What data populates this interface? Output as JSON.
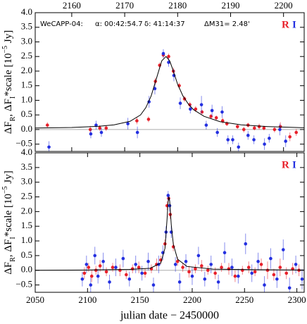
{
  "chart_data": [
    {
      "type": "scatter",
      "annotations": [
        "WeCAPP-04:",
        "α: 00:42:54.7",
        "δ: 41:14:37",
        "ΔM31= 2.48'"
      ],
      "ylabel": [
        "ΔF",
        "R",
        ", ΔF",
        "I",
        "*scale [10",
        "−5",
        " Jy]"
      ],
      "xlim": [
        2153.1,
        2203.9
      ],
      "ylim": [
        -0.75,
        4.0
      ],
      "xticks": [
        2160,
        2170,
        2180,
        2190,
        2200
      ],
      "xtick_side": "top",
      "yticks": [
        {
          "value": 4.0,
          "label": "4.0"
        },
        {
          "value": 3.5,
          "label": "3.5"
        },
        {
          "value": 3.0,
          "label": "3.0"
        },
        {
          "value": 2.5,
          "label": "2.5"
        },
        {
          "value": 2.0,
          "label": "2.0"
        },
        {
          "value": 1.5,
          "label": "1.5"
        },
        {
          "value": 1.0,
          "label": "1.0"
        },
        {
          "value": 0.5,
          "label": "0.5"
        },
        {
          "value": 0.0,
          "label": "0.0"
        },
        {
          "value": -0.5,
          "label": "−0.5"
        }
      ],
      "reference_line": 0,
      "series": [
        {
          "name": "R",
          "color": "#e8202a",
          "x": [
            2155.4,
            2163.5,
            2165.3,
            2166.5,
            2172.3,
            2174.5,
            2175.8,
            2176.6,
            2177.3,
            2178.3,
            2179.2,
            2180.3,
            2181.3,
            2182.3,
            2183.4,
            2184.6,
            2186.3,
            2187.3,
            2188.5,
            2189.3,
            2191.3,
            2192.5,
            2193.3,
            2194.5,
            2195.4,
            2196.3,
            2198.3,
            2199.4,
            2201.2,
            2202.4
          ],
          "values": [
            0.15,
            0.0,
            0.05,
            0.05,
            0.3,
            0.35,
            1.65,
            2.2,
            2.55,
            2.5,
            2.0,
            1.5,
            1.05,
            0.85,
            0.7,
            0.6,
            0.45,
            0.4,
            0.3,
            0.2,
            0.1,
            0.0,
            0.15,
            0.05,
            0.1,
            0.05,
            0.0,
            0.1,
            -0.25,
            -0.1
          ],
          "errors": [
            0.1,
            0.12,
            0.1,
            0.1,
            0.12,
            0.1,
            0.12,
            0.1,
            0.1,
            0.1,
            0.12,
            0.1,
            0.1,
            0.1,
            0.1,
            0.08,
            0.08,
            0.08,
            0.1,
            0.08,
            0.08,
            0.1,
            0.08,
            0.08,
            0.1,
            0.08,
            0.1,
            0.15,
            0.15,
            0.12
          ]
        },
        {
          "name": "I",
          "color": "#2430e0",
          "x": [
            2155.7,
            2163.6,
            2164.6,
            2165.6,
            2170.6,
            2172.4,
            2174.6,
            2175.7,
            2177.3,
            2178.3,
            2179.3,
            2180.5,
            2182.4,
            2184.5,
            2185.4,
            2186.5,
            2187.5,
            2188.4,
            2189.5,
            2190.4,
            2191.5,
            2193.3,
            2194.4,
            2196.4,
            2197.3,
            2199.3,
            2200.4
          ],
          "values": [
            -0.6,
            -0.15,
            0.15,
            -0.1,
            0.2,
            -0.1,
            0.95,
            1.4,
            2.6,
            2.3,
            1.85,
            0.9,
            0.7,
            0.85,
            0.15,
            0.65,
            -0.1,
            0.6,
            -0.35,
            -0.35,
            -0.6,
            -0.2,
            -0.35,
            -0.5,
            -0.3,
            0.0,
            -0.4
          ],
          "errors": [
            0.2,
            0.15,
            0.15,
            0.15,
            0.2,
            0.2,
            0.2,
            0.2,
            0.15,
            0.15,
            0.2,
            0.2,
            0.15,
            0.3,
            0.15,
            0.2,
            0.15,
            0.2,
            0.15,
            0.15,
            0.15,
            0.15,
            0.15,
            0.2,
            0.15,
            0.2,
            0.2
          ]
        },
        {
          "color": "#000000",
          "style": "line",
          "x": [
            2153,
            2160,
            2165,
            2168,
            2171,
            2173,
            2174,
            2175,
            2176,
            2177,
            2177.8,
            2178.5,
            2179,
            2180,
            2181,
            2182,
            2183,
            2185,
            2188,
            2192,
            2197,
            2204
          ],
          "values": [
            0.05,
            0.07,
            0.11,
            0.16,
            0.28,
            0.5,
            0.75,
            1.15,
            1.75,
            2.35,
            2.5,
            2.35,
            2.1,
            1.55,
            1.15,
            0.88,
            0.68,
            0.45,
            0.27,
            0.16,
            0.1,
            0.06
          ]
        }
      ]
    },
    {
      "type": "scatter",
      "ylabel": [
        "ΔF",
        "R",
        ", ΔF",
        "I",
        "*scale [10",
        "−5",
        " Jy]"
      ],
      "xlabel": "julian date − 2450000",
      "xlim": [
        2050,
        2307
      ],
      "ylim": [
        -0.75,
        4.0
      ],
      "xticks": [
        2050,
        2100,
        2150,
        2200,
        2250,
        2300
      ],
      "xtick_side": "bottom",
      "yticks": [
        {
          "value": 4.0,
          "label": "4.0"
        },
        {
          "value": 3.5,
          "label": "3.5"
        },
        {
          "value": 3.0,
          "label": "3.0"
        },
        {
          "value": 2.5,
          "label": "2.5"
        },
        {
          "value": 2.0,
          "label": "2.0"
        },
        {
          "value": 1.5,
          "label": "1.5"
        },
        {
          "value": 1.0,
          "label": "1.0"
        },
        {
          "value": 0.5,
          "label": "0.5"
        },
        {
          "value": 0.0,
          "label": "0.0"
        },
        {
          "value": -0.5,
          "label": "−0.5"
        }
      ],
      "reference_line": 0,
      "series": [
        {
          "name": "R",
          "color": "#e8202a",
          "x": [
            2097,
            2101,
            2104,
            2108,
            2112,
            2118,
            2124,
            2131,
            2137,
            2143,
            2149,
            2155,
            2161,
            2166,
            2170,
            2174,
            2176,
            2177.5,
            2179,
            2182,
            2186,
            2191,
            2197,
            2203,
            2209,
            2215,
            2222,
            2228,
            2235,
            2241,
            2248,
            2254,
            2260,
            2266,
            2272,
            2278,
            2284,
            2290,
            2296,
            2302
          ],
          "values": [
            -0.1,
            0.1,
            -0.2,
            0.0,
            0.15,
            -0.05,
            0.1,
            0.0,
            -0.15,
            0.05,
            0.1,
            -0.1,
            0.05,
            0.2,
            0.35,
            0.9,
            2.2,
            2.45,
            1.9,
            0.8,
            0.3,
            0.1,
            -0.05,
            0.05,
            0.15,
            0.0,
            -0.1,
            0.1,
            0.05,
            -0.2,
            0.0,
            0.1,
            -0.05,
            0.2,
            0.0,
            -0.15,
            0.1,
            -0.1,
            0.05,
            0.0
          ],
          "errors": [
            0.2,
            0.15,
            0.2,
            0.15,
            0.2,
            0.15,
            0.15,
            0.2,
            0.15,
            0.15,
            0.2,
            0.15,
            0.15,
            0.2,
            0.15,
            0.15,
            0.15,
            0.1,
            0.15,
            0.15,
            0.15,
            0.15,
            0.2,
            0.15,
            0.2,
            0.15,
            0.2,
            0.15,
            0.2,
            0.2,
            0.15,
            0.2,
            0.15,
            0.2,
            0.3,
            0.2,
            0.3,
            0.2,
            0.2,
            0.2
          ]
        },
        {
          "name": "I",
          "color": "#2430e0",
          "x": [
            2095,
            2099,
            2103,
            2107,
            2110,
            2115,
            2121,
            2127,
            2134,
            2140,
            2146,
            2152,
            2158,
            2163,
            2168,
            2172,
            2175,
            2177,
            2178.5,
            2180,
            2184,
            2188,
            2194,
            2200,
            2206,
            2212,
            2218,
            2225,
            2231,
            2238,
            2244,
            2251,
            2257,
            2263,
            2269,
            2275,
            2281,
            2287,
            2293,
            2299,
            2305
          ],
          "values": [
            -0.3,
            0.2,
            -0.5,
            0.5,
            -0.2,
            0.3,
            -0.4,
            0.1,
            0.4,
            -0.3,
            0.2,
            -0.1,
            0.3,
            -0.5,
            0.2,
            0.6,
            1.3,
            2.55,
            2.2,
            1.3,
            0.2,
            -0.4,
            0.3,
            -0.2,
            0.5,
            -0.3,
            0.2,
            -0.4,
            0.6,
            0.1,
            -0.2,
            0.9,
            -0.1,
            0.3,
            -0.5,
            0.4,
            -0.3,
            0.7,
            -0.6,
            0.2,
            -0.3
          ],
          "errors": [
            0.25,
            0.3,
            0.25,
            0.3,
            0.25,
            0.3,
            0.25,
            0.3,
            0.3,
            0.25,
            0.3,
            0.25,
            0.3,
            0.25,
            0.3,
            0.25,
            0.2,
            0.15,
            0.2,
            0.2,
            0.25,
            0.3,
            0.25,
            0.3,
            0.3,
            0.25,
            0.3,
            0.25,
            0.35,
            0.3,
            0.25,
            0.35,
            0.3,
            0.3,
            0.3,
            0.35,
            0.3,
            0.35,
            0.35,
            0.3,
            0.35
          ]
        },
        {
          "color": "#000000",
          "style": "line",
          "x": [
            2050,
            2100,
            2140,
            2160,
            2170,
            2174,
            2176,
            2177,
            2177.8,
            2178.5,
            2180,
            2182,
            2186,
            2195,
            2220,
            2260,
            2307
          ],
          "values": [
            0.0,
            0.01,
            0.03,
            0.07,
            0.25,
            0.75,
            1.75,
            2.35,
            2.5,
            2.35,
            1.55,
            0.88,
            0.38,
            0.13,
            0.04,
            0.02,
            0.01
          ]
        }
      ]
    }
  ]
}
